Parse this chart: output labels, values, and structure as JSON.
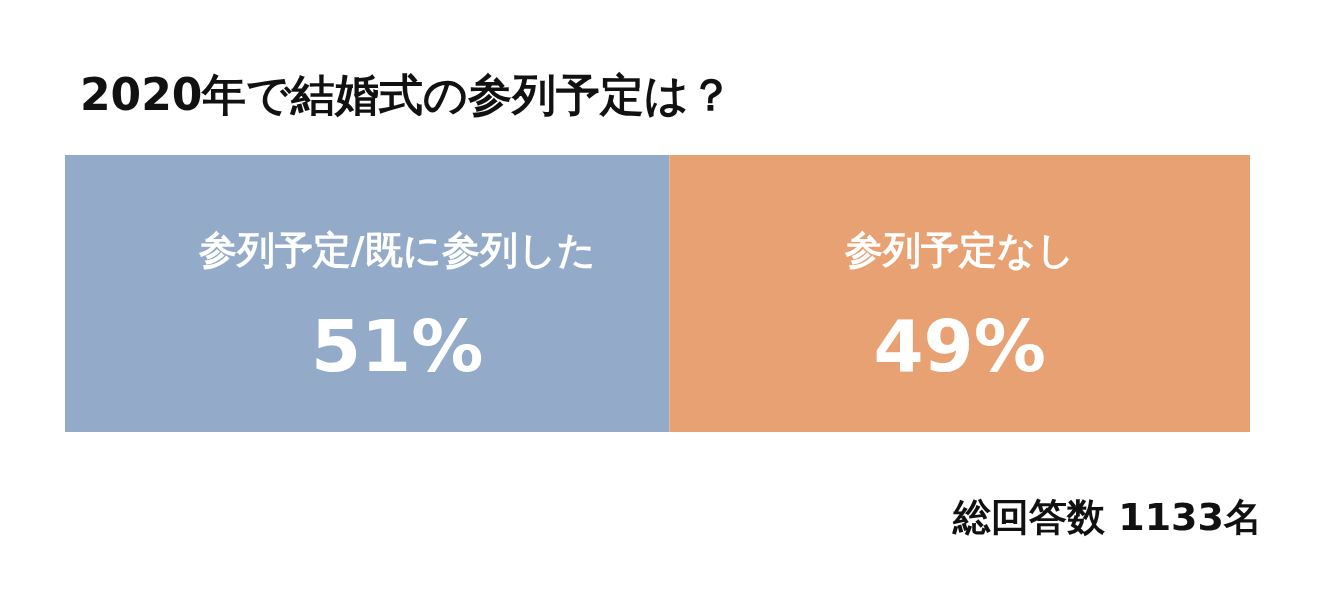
{
  "chart_data": {
    "type": "bar",
    "orientation": "horizontal",
    "stacked": true,
    "title": "2020年で結婚式の参列予定は？",
    "categories": [
      null
    ],
    "series": [
      {
        "name": "参列予定/既に参列した",
        "color": "#94aac9",
        "values": [
          51
        ],
        "value_labels": [
          "51%"
        ]
      },
      {
        "name": "参列予定なし",
        "color": "#e8a172",
        "values": [
          49
        ],
        "value_labels": [
          "49%"
        ]
      }
    ],
    "legend": false,
    "annotations": [
      "総回答数 1133名"
    ]
  }
}
